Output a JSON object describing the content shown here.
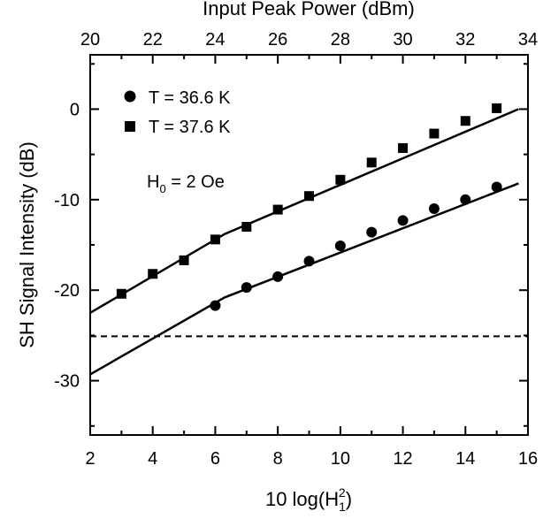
{
  "chart_data": {
    "type": "scatter",
    "top_axis": {
      "label": "Input Peak Power (dBm)",
      "range": [
        20,
        34
      ],
      "ticks": [
        "20",
        "22",
        "24",
        "26",
        "28",
        "30",
        "32",
        "34"
      ],
      "tick_values": [
        20,
        22,
        24,
        26,
        28,
        30,
        32,
        34
      ]
    },
    "x_axis": {
      "label_main": "10 log(H",
      "label_sub": "1",
      "label_sup": "2",
      "label_close": ")",
      "range": [
        2,
        16
      ],
      "ticks": [
        "2",
        "4",
        "6",
        "8",
        "10",
        "12",
        "14",
        "16"
      ],
      "tick_values": [
        2,
        4,
        6,
        8,
        10,
        12,
        14,
        16
      ]
    },
    "y_axis": {
      "label": "SH Signal Intensity (dB)",
      "range": [
        -36,
        6
      ],
      "ticks": [
        "0",
        "-10",
        "-20",
        "-30"
      ],
      "tick_values": [
        0,
        -10,
        -20,
        -30
      ]
    },
    "annotation": {
      "main": "H",
      "sub": "0",
      "rest": " = 2 Oe"
    },
    "series": [
      {
        "name": "T = 36.6 K",
        "marker": "circle",
        "x": [
          6,
          7,
          8,
          9,
          10,
          11,
          12,
          13,
          14,
          15
        ],
        "y": [
          -21.7,
          -19.7,
          -18.5,
          -16.8,
          -15.1,
          -13.6,
          -12.3,
          -11.0,
          -10.0,
          -8.6
        ]
      },
      {
        "name": "T = 37.6 K",
        "marker": "square",
        "x": [
          3,
          4,
          5,
          6,
          7,
          8,
          9,
          10,
          11,
          12,
          13,
          14,
          15
        ],
        "y": [
          -20.4,
          -18.2,
          -16.7,
          -14.4,
          -13.0,
          -11.1,
          -9.6,
          -7.8,
          -5.9,
          -4.3,
          -2.7,
          -1.3,
          0.1
        ]
      }
    ],
    "fit_lines": [
      {
        "series": "T = 36.6 K",
        "points": [
          [
            2,
            -29.3
          ],
          [
            6.3,
            -20.8
          ],
          [
            15.7,
            -8.2
          ]
        ]
      },
      {
        "series": "T = 37.6 K",
        "points": [
          [
            2,
            -22.5
          ],
          [
            6.3,
            -13.8
          ],
          [
            15.7,
            0
          ]
        ]
      }
    ],
    "threshold_line": {
      "y": -25.1,
      "style": "dashed"
    },
    "legend_position": "top-left",
    "grid": false
  }
}
